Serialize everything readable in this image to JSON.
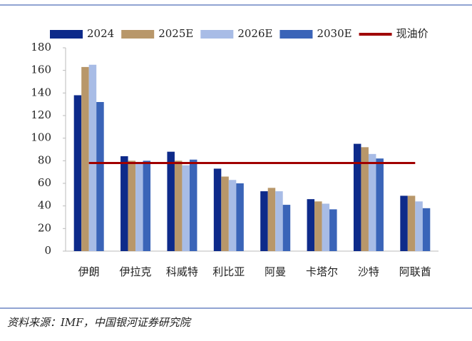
{
  "chart_data": {
    "type": "bar",
    "categories": [
      "伊朗",
      "伊拉克",
      "科威特",
      "利比亚",
      "阿曼",
      "卡塔尔",
      "沙特",
      "阿联酋"
    ],
    "series": [
      {
        "name": "2024",
        "color": "#0d2a8a",
        "values": [
          138,
          84,
          88,
          73,
          53,
          46,
          95,
          49
        ]
      },
      {
        "name": "2025E",
        "color": "#b8976a",
        "values": [
          163,
          80,
          80,
          66,
          56,
          44,
          92,
          49
        ]
      },
      {
        "name": "2026E",
        "color": "#a8bce6",
        "values": [
          165,
          79,
          76,
          63,
          53,
          42,
          86,
          44
        ]
      },
      {
        "name": "2030E",
        "color": "#3a64b8",
        "values": [
          132,
          80,
          81,
          60,
          41,
          37,
          82,
          38
        ]
      }
    ],
    "reference_line": {
      "name": "现油价",
      "color": "#a00000",
      "value": 78
    },
    "ylim": [
      0,
      180
    ],
    "yticks": [
      0,
      20,
      40,
      60,
      80,
      100,
      120,
      140,
      160,
      180
    ],
    "source": "资料来源：IMF，中国银河证券研究院"
  }
}
